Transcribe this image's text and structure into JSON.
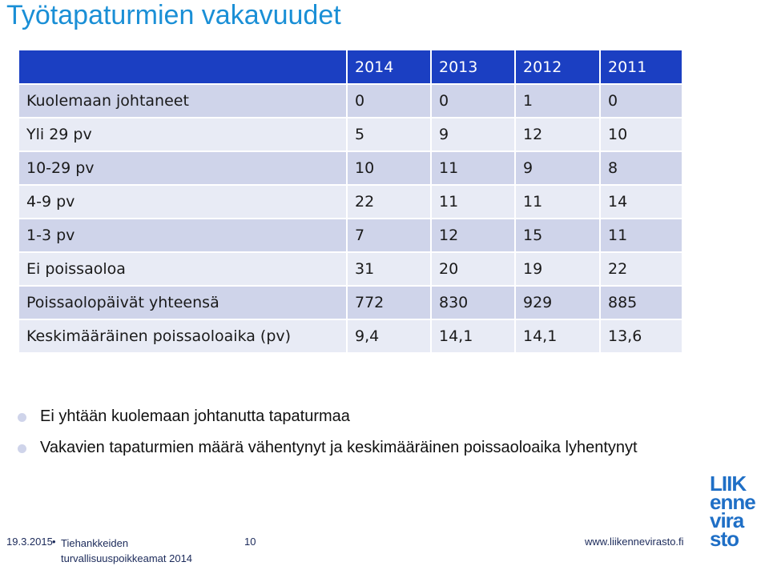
{
  "slide": {
    "title": "Työtapaturmien vakavuudet"
  },
  "table": {
    "headers": [
      "",
      "2014",
      "2013",
      "2012",
      "2011"
    ],
    "rows": [
      {
        "label": "Kuolemaan johtaneet",
        "values": [
          "0",
          "0",
          "1",
          "0"
        ]
      },
      {
        "label": "Yli 29 pv",
        "values": [
          "5",
          "9",
          "12",
          "10"
        ]
      },
      {
        "label": "10-29 pv",
        "values": [
          "10",
          "11",
          "9",
          "8"
        ]
      },
      {
        "label": "4-9 pv",
        "values": [
          "22",
          "11",
          "11",
          "14"
        ]
      },
      {
        "label": "1-3 pv",
        "values": [
          "7",
          "12",
          "15",
          "11"
        ]
      },
      {
        "label": "Ei poissaoloa",
        "values": [
          "31",
          "20",
          "19",
          "22"
        ]
      },
      {
        "label": "Poissaolopäivät yhteensä",
        "values": [
          "772",
          "830",
          "929",
          "885"
        ]
      },
      {
        "label": "Keskimääräinen poissaoloaika (pv)",
        "values": [
          "9,4",
          "14,1",
          "14,1",
          "13,6"
        ]
      }
    ]
  },
  "bullets": [
    "Ei yhtään kuolemaan johtanutta tapaturmaa",
    "Vakavien tapaturmien määrä vähentynyt ja keskimääräinen poissaoloaika lyhentynyt"
  ],
  "footer": {
    "date": "19.3.2015",
    "source": "Tiehankkeiden turvallisuuspoikkeamat 2014",
    "page": "10",
    "url": "www.liikennevirasto.fi"
  },
  "logo": {
    "lines": [
      "LIIK",
      "enne",
      "vira",
      "sto"
    ]
  },
  "colors": {
    "title": "#1a8fd6",
    "header_bg": "#1b3fc2",
    "row_even": "#cfd4ea",
    "row_odd": "#e8ebf5",
    "logo": "#1f6fc6"
  }
}
